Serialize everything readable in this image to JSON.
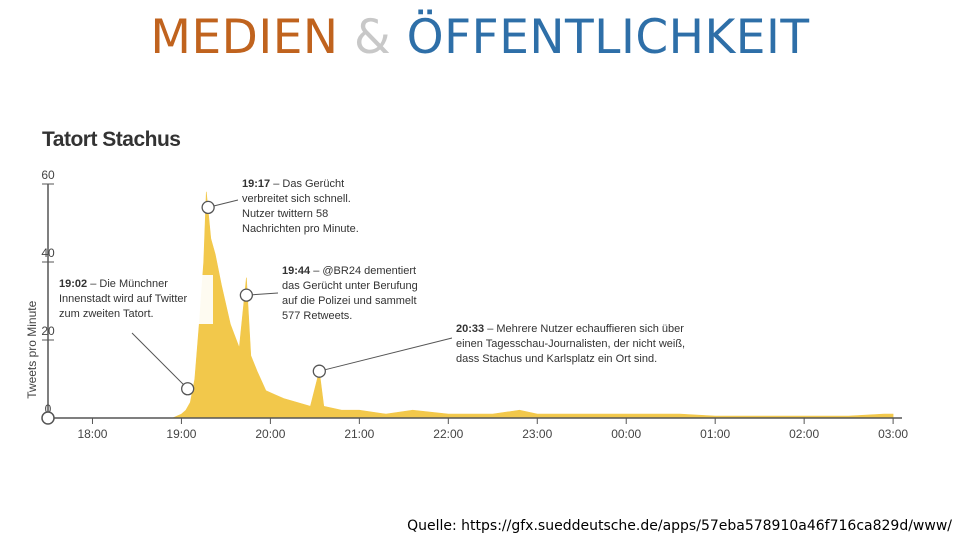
{
  "slide": {
    "title_part1": "MEDIEN",
    "title_part2": "&",
    "title_part3": "ÖFFENTLICHKEIT",
    "colors": {
      "part1": "#c0631e",
      "part2": "#c8c8c8",
      "part3": "#2e6fa8"
    }
  },
  "source": "Quelle: https://gfx.sueddeutsche.de/apps/57eba578910a46f716ca829d/www/",
  "chart_data": {
    "type": "area",
    "title": "Tatort Stachus",
    "ylabel": "Tweets pro Minute",
    "xlabel": "",
    "ylim": [
      0,
      60
    ],
    "y_ticks": [
      0,
      20,
      40,
      60
    ],
    "x_range_hours": [
      17.5,
      27.1
    ],
    "x_ticks": [
      "18:00",
      "19:00",
      "20:00",
      "21:00",
      "22:00",
      "23:00",
      "00:00",
      "01:00",
      "02:00",
      "03:00"
    ],
    "x_tick_hours": [
      18,
      19,
      20,
      21,
      22,
      23,
      24,
      25,
      26,
      27
    ],
    "fill_color": "#f2c84b",
    "axis_color": "#555555",
    "series": [
      {
        "points": [
          [
            18.9,
            0
          ],
          [
            19.0,
            1
          ],
          [
            19.05,
            2
          ],
          [
            19.1,
            4
          ],
          [
            19.15,
            10
          ],
          [
            19.2,
            24
          ],
          [
            19.25,
            40
          ],
          [
            19.28,
            58
          ],
          [
            19.33,
            46
          ],
          [
            19.38,
            42
          ],
          [
            19.45,
            34
          ],
          [
            19.55,
            24
          ],
          [
            19.65,
            18
          ],
          [
            19.73,
            36
          ],
          [
            19.78,
            16
          ],
          [
            19.85,
            12
          ],
          [
            19.95,
            7
          ],
          [
            20.05,
            6
          ],
          [
            20.15,
            5
          ],
          [
            20.3,
            4
          ],
          [
            20.45,
            3
          ],
          [
            20.55,
            12
          ],
          [
            20.6,
            3
          ],
          [
            20.8,
            2
          ],
          [
            21.0,
            2
          ],
          [
            21.3,
            1
          ],
          [
            21.6,
            2
          ],
          [
            22.0,
            1
          ],
          [
            22.5,
            1
          ],
          [
            22.8,
            2
          ],
          [
            23.0,
            1
          ],
          [
            23.5,
            1
          ],
          [
            24.0,
            1
          ],
          [
            24.6,
            1
          ],
          [
            25.0,
            0.5
          ],
          [
            26.0,
            0.5
          ],
          [
            26.5,
            0.5
          ],
          [
            26.9,
            1
          ],
          [
            27.0,
            1
          ]
        ]
      }
    ],
    "annotations": [
      {
        "time": "19:02",
        "text": "– Die Münchner Innenstadt wird auf Twitter zum zweiten Tatort.",
        "marker_hour": 19.07,
        "marker_value": 7.5
      },
      {
        "time": "19:17",
        "text": "– Das Gerücht verbreitet sich schnell. Nutzer twittern 58 Nachrichten pro Minute.",
        "marker_hour": 19.3,
        "marker_value": 54
      },
      {
        "time": "19:44",
        "text": "– @BR24 dementiert das Gerücht unter Berufung auf die Polizei und sammelt 577 Retweets.",
        "marker_hour": 19.73,
        "marker_value": 31.5
      },
      {
        "time": "20:33",
        "text": "– Mehrere Nutzer echauffieren sich über einen Tagesschau-Journalisten, der nicht weiß, dass Stachus und Karlsplatz ein Ort sind.",
        "marker_hour": 20.55,
        "marker_value": 12
      }
    ]
  }
}
